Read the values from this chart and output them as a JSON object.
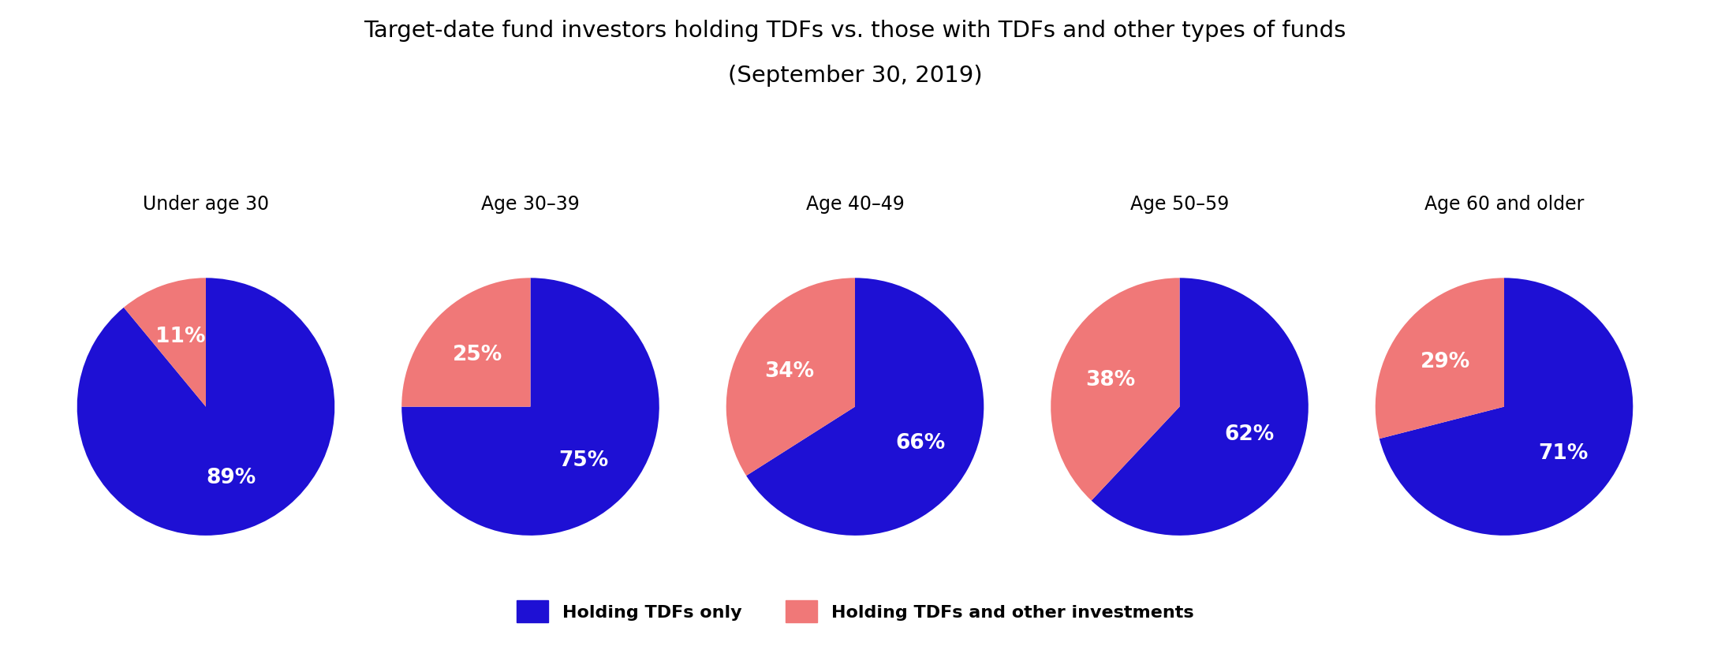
{
  "title_line1": "Target-date fund investors holding TDFs vs. those with TDFs and other types of funds",
  "title_line2": "(September 30, 2019)",
  "categories": [
    "Under age 30",
    "Age 30–39",
    "Age 40–49",
    "Age 50–59",
    "Age 60 and older"
  ],
  "tdf_only": [
    89,
    75,
    66,
    62,
    71
  ],
  "tdf_other": [
    11,
    25,
    34,
    38,
    29
  ],
  "color_tdf_only": "#1e10d4",
  "color_tdf_other": "#f07878",
  "background_color": "#ffffff",
  "legend_label_only": "Holding TDFs only",
  "legend_label_other": "Holding TDFs and other investments",
  "title_fontsize": 21,
  "category_fontsize": 17,
  "pct_fontsize": 19,
  "legend_fontsize": 16
}
